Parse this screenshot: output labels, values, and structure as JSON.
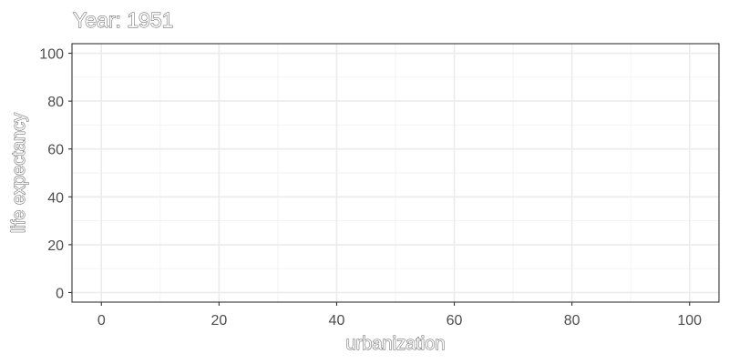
{
  "chart_data": {
    "type": "scatter",
    "title": "Year: 1951",
    "xlabel": "urbanization",
    "ylabel": "life expectancy",
    "xlim": [
      -5,
      105
    ],
    "ylim": [
      -4,
      104
    ],
    "x_ticks": [
      0,
      20,
      40,
      60,
      80,
      100
    ],
    "y_ticks": [
      0,
      20,
      40,
      60,
      80,
      100
    ],
    "x_tick_labels": [
      "0",
      "20",
      "40",
      "60",
      "80",
      "100"
    ],
    "y_tick_labels": [
      "0",
      "20",
      "40",
      "60",
      "80",
      "100"
    ],
    "grid": true,
    "theme": "bw",
    "points": []
  }
}
